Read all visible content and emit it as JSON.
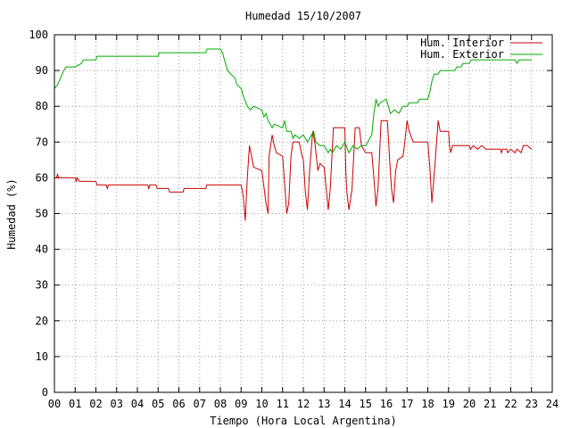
{
  "chart_data": {
    "type": "line",
    "title": "Humedad 15/10/2007",
    "xlabel": "Tiempo (Hora Local Argentina)",
    "ylabel": "Humedad (%)",
    "xlim": [
      0,
      24
    ],
    "ylim": [
      0,
      100
    ],
    "xticks": [
      "00",
      "01",
      "02",
      "03",
      "04",
      "05",
      "06",
      "07",
      "08",
      "09",
      "10",
      "11",
      "12",
      "13",
      "14",
      "15",
      "16",
      "17",
      "18",
      "19",
      "20",
      "21",
      "22",
      "23",
      "24"
    ],
    "yticks": [
      0,
      10,
      20,
      30,
      40,
      50,
      60,
      70,
      80,
      90,
      100
    ],
    "grid": true,
    "legend_position": "top-right",
    "series": [
      {
        "name": "Hum. Interior",
        "color": "#cc0000",
        "points": [
          [
            0.0,
            60
          ],
          [
            0.1,
            60
          ],
          [
            0.15,
            61
          ],
          [
            0.2,
            60
          ],
          [
            1.0,
            60
          ],
          [
            1.05,
            59
          ],
          [
            1.1,
            60
          ],
          [
            1.2,
            59
          ],
          [
            2.0,
            59
          ],
          [
            2.05,
            58
          ],
          [
            2.5,
            58
          ],
          [
            2.55,
            57
          ],
          [
            2.6,
            58
          ],
          [
            4.5,
            58
          ],
          [
            4.55,
            57
          ],
          [
            4.6,
            58
          ],
          [
            4.9,
            58
          ],
          [
            4.95,
            57
          ],
          [
            5.5,
            57
          ],
          [
            5.55,
            56
          ],
          [
            6.2,
            56
          ],
          [
            6.25,
            57
          ],
          [
            7.3,
            57
          ],
          [
            7.35,
            58
          ],
          [
            9.0,
            58
          ],
          [
            9.1,
            55
          ],
          [
            9.2,
            48
          ],
          [
            9.3,
            60
          ],
          [
            9.4,
            69
          ],
          [
            9.5,
            66
          ],
          [
            9.6,
            63
          ],
          [
            10.0,
            62
          ],
          [
            10.2,
            53
          ],
          [
            10.3,
            50
          ],
          [
            10.35,
            66
          ],
          [
            10.5,
            72
          ],
          [
            10.6,
            69
          ],
          [
            10.7,
            67
          ],
          [
            11.0,
            66
          ],
          [
            11.1,
            58
          ],
          [
            11.2,
            50
          ],
          [
            11.3,
            53
          ],
          [
            11.4,
            66
          ],
          [
            11.5,
            70
          ],
          [
            11.8,
            70
          ],
          [
            11.9,
            67
          ],
          [
            12.0,
            65
          ],
          [
            12.1,
            56
          ],
          [
            12.2,
            51
          ],
          [
            12.3,
            62
          ],
          [
            12.45,
            73
          ],
          [
            12.55,
            70
          ],
          [
            12.7,
            62
          ],
          [
            12.8,
            64
          ],
          [
            13.0,
            63
          ],
          [
            13.1,
            57
          ],
          [
            13.2,
            51
          ],
          [
            13.3,
            57
          ],
          [
            13.45,
            74
          ],
          [
            14.0,
            74
          ],
          [
            14.05,
            61
          ],
          [
            14.1,
            56
          ],
          [
            14.2,
            51
          ],
          [
            14.35,
            57
          ],
          [
            14.5,
            74
          ],
          [
            14.7,
            74
          ],
          [
            14.8,
            69
          ],
          [
            15.0,
            67
          ],
          [
            15.3,
            67
          ],
          [
            15.4,
            60
          ],
          [
            15.5,
            52
          ],
          [
            15.6,
            57
          ],
          [
            15.75,
            76
          ],
          [
            16.05,
            76
          ],
          [
            16.15,
            66
          ],
          [
            16.25,
            57
          ],
          [
            16.35,
            53
          ],
          [
            16.45,
            62
          ],
          [
            16.55,
            65
          ],
          [
            16.8,
            66
          ],
          [
            16.85,
            68
          ],
          [
            17.0,
            76
          ],
          [
            17.1,
            73
          ],
          [
            17.3,
            70
          ],
          [
            18.0,
            70
          ],
          [
            18.1,
            63
          ],
          [
            18.2,
            53
          ],
          [
            18.35,
            64
          ],
          [
            18.5,
            76
          ],
          [
            18.6,
            73
          ],
          [
            19.0,
            73
          ],
          [
            19.05,
            69
          ],
          [
            19.1,
            67
          ],
          [
            19.15,
            68
          ],
          [
            19.2,
            69
          ],
          [
            20.0,
            69
          ],
          [
            20.05,
            68
          ],
          [
            20.2,
            69
          ],
          [
            20.4,
            68
          ],
          [
            20.6,
            69
          ],
          [
            20.8,
            68
          ],
          [
            21.0,
            68
          ],
          [
            21.5,
            68
          ],
          [
            21.55,
            67
          ],
          [
            21.6,
            68
          ],
          [
            21.8,
            68
          ],
          [
            21.85,
            67
          ],
          [
            22.0,
            68
          ],
          [
            22.2,
            67
          ],
          [
            22.3,
            68
          ],
          [
            22.5,
            67
          ],
          [
            22.55,
            68
          ],
          [
            22.6,
            69
          ],
          [
            22.8,
            69
          ],
          [
            23.0,
            68
          ]
        ]
      },
      {
        "name": "Hum. Exterior",
        "color": "#00aa00",
        "points": [
          [
            0.0,
            85
          ],
          [
            0.15,
            86
          ],
          [
            0.3,
            88
          ],
          [
            0.45,
            90
          ],
          [
            0.55,
            91
          ],
          [
            1.0,
            91
          ],
          [
            1.3,
            92
          ],
          [
            1.4,
            93
          ],
          [
            2.0,
            93
          ],
          [
            2.05,
            94
          ],
          [
            5.0,
            94
          ],
          [
            5.05,
            95
          ],
          [
            7.3,
            95
          ],
          [
            7.35,
            96
          ],
          [
            8.0,
            96
          ],
          [
            8.1,
            95
          ],
          [
            8.2,
            93
          ],
          [
            8.35,
            90
          ],
          [
            8.5,
            89
          ],
          [
            8.7,
            88
          ],
          [
            8.8,
            86
          ],
          [
            9.0,
            85
          ],
          [
            9.1,
            83
          ],
          [
            9.3,
            80
          ],
          [
            9.45,
            79
          ],
          [
            9.6,
            80
          ],
          [
            10.0,
            79
          ],
          [
            10.1,
            77
          ],
          [
            10.2,
            78
          ],
          [
            10.3,
            76
          ],
          [
            10.4,
            75
          ],
          [
            10.5,
            74
          ],
          [
            10.6,
            75
          ],
          [
            11.0,
            74
          ],
          [
            11.1,
            76
          ],
          [
            11.2,
            73
          ],
          [
            11.4,
            73
          ],
          [
            11.5,
            71
          ],
          [
            11.6,
            72
          ],
          [
            11.8,
            71
          ],
          [
            12.0,
            72
          ],
          [
            12.2,
            70
          ],
          [
            12.4,
            72
          ],
          [
            12.5,
            73
          ],
          [
            12.6,
            70
          ],
          [
            12.8,
            69
          ],
          [
            13.0,
            69
          ],
          [
            13.2,
            67
          ],
          [
            13.3,
            68
          ],
          [
            13.4,
            67
          ],
          [
            13.6,
            69
          ],
          [
            13.8,
            68
          ],
          [
            14.0,
            70
          ],
          [
            14.2,
            67
          ],
          [
            14.4,
            69
          ],
          [
            14.6,
            68
          ],
          [
            14.8,
            69
          ],
          [
            15.0,
            69
          ],
          [
            15.1,
            70
          ],
          [
            15.3,
            72
          ],
          [
            15.4,
            78
          ],
          [
            15.5,
            82
          ],
          [
            15.6,
            80
          ],
          [
            15.7,
            81
          ],
          [
            16.0,
            82
          ],
          [
            16.1,
            80
          ],
          [
            16.2,
            78
          ],
          [
            16.4,
            79
          ],
          [
            16.6,
            78
          ],
          [
            16.8,
            80
          ],
          [
            17.0,
            80
          ],
          [
            17.1,
            81
          ],
          [
            17.5,
            81
          ],
          [
            17.6,
            82
          ],
          [
            18.0,
            82
          ],
          [
            18.1,
            84
          ],
          [
            18.2,
            87
          ],
          [
            18.3,
            89
          ],
          [
            18.5,
            89
          ],
          [
            18.6,
            90
          ],
          [
            19.3,
            90
          ],
          [
            19.4,
            91
          ],
          [
            19.6,
            91
          ],
          [
            19.7,
            92
          ],
          [
            20.0,
            92
          ],
          [
            20.1,
            93
          ],
          [
            22.2,
            93
          ],
          [
            22.3,
            92
          ],
          [
            22.4,
            93
          ],
          [
            23.0,
            93
          ]
        ]
      }
    ]
  }
}
